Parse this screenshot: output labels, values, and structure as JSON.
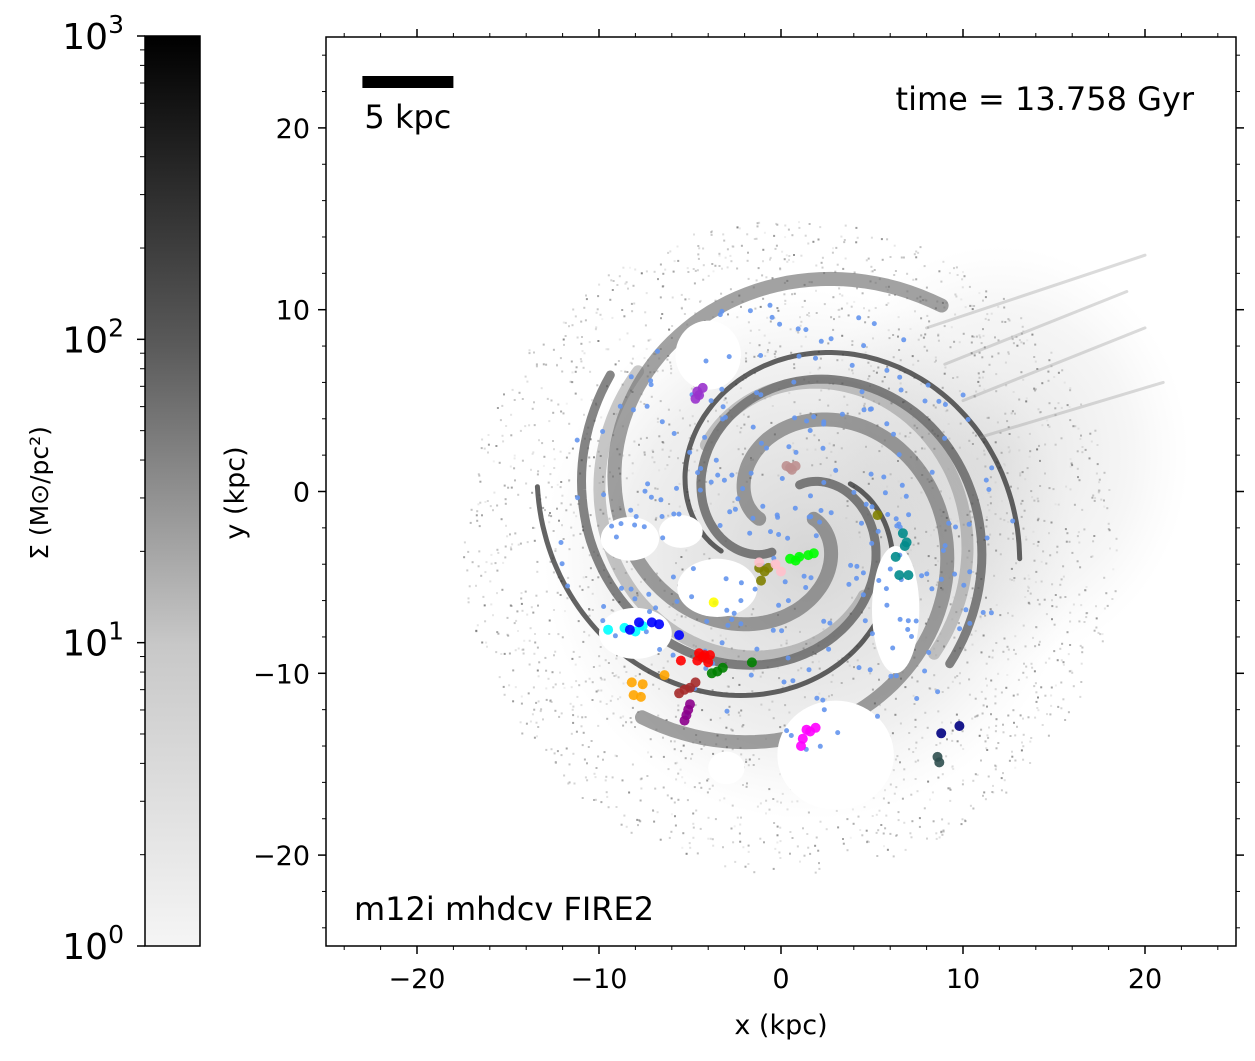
{
  "chart_data": {
    "type": "scatter",
    "xlabel": "x (kpc)",
    "ylabel": "y (kpc)",
    "xlim": [
      -25,
      25
    ],
    "ylim": [
      -25,
      25
    ],
    "xticks": [
      -20,
      -10,
      0,
      10,
      20
    ],
    "xtick_labels": [
      "−20",
      "−10",
      "0",
      "10",
      "20"
    ],
    "yticks": [
      -20,
      -10,
      0,
      10,
      20
    ],
    "ytick_labels": [
      "−20",
      "−10",
      "0",
      "10",
      "20"
    ],
    "annotations": {
      "time": "time = 13.758 Gyr",
      "sim_name": "m12i mhdcv FIRE2",
      "scale_bar": "5 kpc"
    },
    "scale_bar_length_kpc": 5,
    "colorbar": {
      "label": "Σ (M⊙/pc²)",
      "scale": "log",
      "range": [
        1,
        1000
      ],
      "ticks": [
        {
          "base": "10",
          "exp": "0",
          "value": 1
        },
        {
          "base": "10",
          "exp": "1",
          "value": 10
        },
        {
          "base": "10",
          "exp": "2",
          "value": 100
        },
        {
          "base": "10",
          "exp": "3",
          "value": 1000
        }
      ],
      "colors": [
        "#f5f5f5",
        "#000000"
      ]
    },
    "background_gas_color": "#333333",
    "field_stars_color": "#6495ed",
    "clusters": [
      {
        "color": "#9932cc",
        "points": [
          [
            -4.7,
            5.1
          ],
          [
            -4.6,
            5.5
          ],
          [
            -4.3,
            5.7
          ],
          [
            -4.5,
            5.3
          ]
        ]
      },
      {
        "color": "#bc8f8f",
        "points": [
          [
            0.3,
            1.4
          ],
          [
            0.5,
            1.3
          ],
          [
            0.8,
            1.4
          ],
          [
            0.6,
            1.2
          ]
        ]
      },
      {
        "color": "#808000",
        "points": [
          [
            5.3,
            -1.3
          ],
          [
            -1.2,
            -4.2
          ],
          [
            -0.7,
            -4.2
          ],
          [
            -1.1,
            -4.9
          ],
          [
            -0.9,
            -4.4
          ]
        ]
      },
      {
        "color": "#00ff00",
        "points": [
          [
            0.5,
            -3.7
          ],
          [
            1.0,
            -3.6
          ],
          [
            1.5,
            -3.5
          ],
          [
            1.8,
            -3.4
          ],
          [
            0.8,
            -3.8
          ]
        ]
      },
      {
        "color": "#ffc0cb",
        "points": [
          [
            -1.2,
            -3.9
          ],
          [
            -0.3,
            -4.0
          ],
          [
            0.0,
            -4.4
          ]
        ]
      },
      {
        "color": "#008b8b",
        "points": [
          [
            6.7,
            -2.3
          ],
          [
            6.9,
            -2.8
          ],
          [
            6.8,
            -3.0
          ],
          [
            6.3,
            -3.6
          ],
          [
            6.5,
            -4.6
          ],
          [
            7.0,
            -4.6
          ]
        ]
      },
      {
        "color": "#ffff00",
        "points": [
          [
            -3.7,
            -6.1
          ]
        ]
      },
      {
        "color": "#00ffff",
        "points": [
          [
            -9.5,
            -7.6
          ],
          [
            -8.6,
            -7.5
          ],
          [
            -8.0,
            -7.7
          ],
          [
            -7.6,
            -7.4
          ]
        ]
      },
      {
        "color": "#0000ff",
        "points": [
          [
            -7.8,
            -7.2
          ],
          [
            -7.1,
            -7.2
          ],
          [
            -6.7,
            -7.3
          ],
          [
            -8.3,
            -7.6
          ],
          [
            -5.6,
            -7.9
          ]
        ]
      },
      {
        "color": "#ff0000",
        "points": [
          [
            -4.5,
            -8.9
          ],
          [
            -4.2,
            -9.0
          ],
          [
            -4.0,
            -9.4
          ],
          [
            -4.6,
            -9.3
          ],
          [
            -4.3,
            -9.1
          ],
          [
            -5.5,
            -9.3
          ],
          [
            -3.9,
            -9.0
          ]
        ]
      },
      {
        "color": "#008000",
        "points": [
          [
            -3.5,
            -9.9
          ],
          [
            -3.2,
            -9.7
          ],
          [
            -1.6,
            -9.4
          ],
          [
            -3.8,
            -10.0
          ]
        ]
      },
      {
        "color": "#a52a2a",
        "points": [
          [
            -4.7,
            -10.5
          ],
          [
            -5.3,
            -10.9
          ],
          [
            -5.6,
            -11.1
          ],
          [
            -5.0,
            -10.8
          ]
        ]
      },
      {
        "color": "#ffa500",
        "points": [
          [
            -8.2,
            -10.5
          ],
          [
            -7.6,
            -10.6
          ],
          [
            -6.4,
            -10.1
          ],
          [
            -7.7,
            -11.3
          ],
          [
            -8.1,
            -11.2
          ]
        ]
      },
      {
        "color": "#8b008b",
        "points": [
          [
            -5.0,
            -11.7
          ],
          [
            -5.2,
            -12.3
          ],
          [
            -5.3,
            -12.6
          ],
          [
            -5.1,
            -12.0
          ]
        ]
      },
      {
        "color": "#ff00ff",
        "points": [
          [
            1.4,
            -13.1
          ],
          [
            1.9,
            -13.0
          ],
          [
            1.2,
            -13.6
          ],
          [
            1.1,
            -14.0
          ],
          [
            1.6,
            -13.2
          ]
        ]
      },
      {
        "color": "#000080",
        "points": [
          [
            8.8,
            -13.3
          ],
          [
            9.8,
            -12.9
          ]
        ]
      },
      {
        "color": "#2f4f4f",
        "points": [
          [
            8.6,
            -14.6
          ],
          [
            8.7,
            -14.9
          ]
        ]
      }
    ]
  }
}
